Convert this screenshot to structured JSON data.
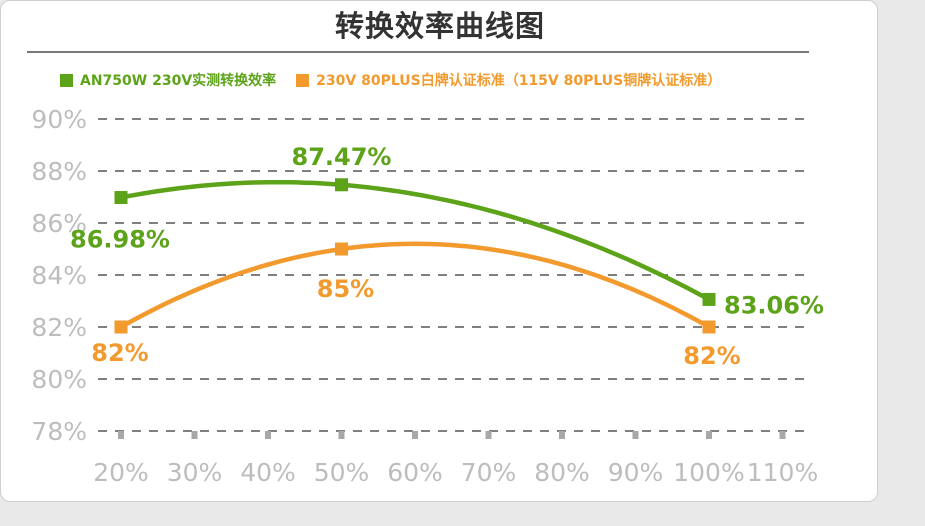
{
  "chart_data": {
    "type": "line",
    "title": "转换效率曲线图",
    "xlabel": "",
    "ylabel": "",
    "x": [
      "20%",
      "30%",
      "40%",
      "50%",
      "60%",
      "70%",
      "80%",
      "90%",
      "100%",
      "110%"
    ],
    "ylim": [
      78,
      90
    ],
    "yticks": [
      90,
      88,
      86,
      84,
      82,
      80,
      78
    ],
    "ytick_labels": [
      "90%",
      "88%",
      "86%",
      "84%",
      "82%",
      "80%",
      "78%"
    ],
    "grid": true,
    "legend_position": "top-left",
    "series": [
      {
        "name": "AN750W 230V实测转换效率",
        "color": "#5da31a",
        "points": [
          {
            "x": "20%",
            "y": 86.98,
            "label": "86.98%"
          },
          {
            "x": "50%",
            "y": 87.47,
            "label": "87.47%"
          },
          {
            "x": "100%",
            "y": 83.06,
            "label": "83.06%"
          }
        ]
      },
      {
        "name": "230V 80PLUS白牌认证标准（115V 80PLUS铜牌认证标准）",
        "color": "#f29a2e",
        "points": [
          {
            "x": "20%",
            "y": 82,
            "label": "82%"
          },
          {
            "x": "50%",
            "y": 85,
            "label": "85%"
          },
          {
            "x": "100%",
            "y": 82,
            "label": "82%"
          }
        ]
      }
    ]
  }
}
